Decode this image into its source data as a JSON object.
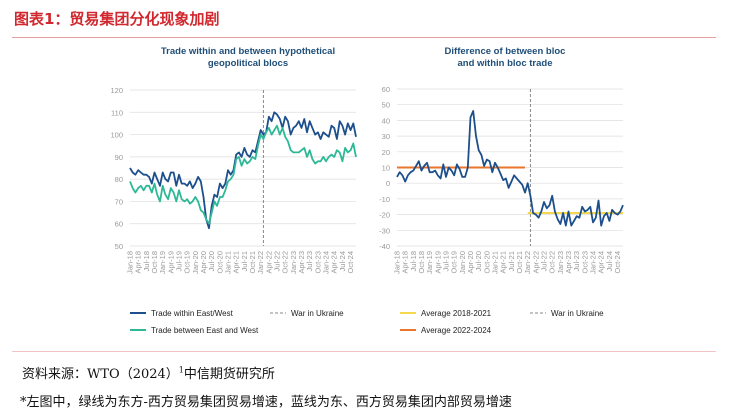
{
  "header": {
    "title": "图表1：贸易集团分化现象加剧"
  },
  "footer": {
    "source_prefix": "资料来源：WTO（2024）",
    "source_sup": "1",
    "source_suffix": "中信期货研究所",
    "note": "*左图中，绿线为东方-西方贸易集团贸易增速，蓝线为东、西方贸易集团内部贸易增速"
  },
  "colors": {
    "blue": "#1c4f8c",
    "green": "#2db896",
    "orange": "#e9762b",
    "yellow": "#f4d94e",
    "grid": "#dddddd",
    "war": "#888888"
  },
  "chart_data": [
    {
      "type": "line",
      "title": [
        "Trade within and between hypothetical",
        "geopolitical blocs"
      ],
      "ylim": [
        50,
        120
      ],
      "yticks": [
        50,
        60,
        70,
        80,
        90,
        100,
        110,
        120
      ],
      "xtick_labels": [
        "Jan-18",
        "Apr-18",
        "Jul-18",
        "Oct-18",
        "Jan-19",
        "Apr-19",
        "Jul-19",
        "Oct-19",
        "Jan-20",
        "Apr-20",
        "Jul-20",
        "Oct-20",
        "Jan-21",
        "Apr-21",
        "Jul-21",
        "Oct-21",
        "Jan-22",
        "Apr-22",
        "Jul-22",
        "Oct-22",
        "Jan-23",
        "Apr-23",
        "Jul-23",
        "Oct-23",
        "Jan-24",
        "Apr-24",
        "Jul-24",
        "Oct-24"
      ],
      "war_index": 49,
      "series": [
        {
          "name": "Trade within East/West",
          "color": "blue",
          "values": [
            85,
            83,
            82,
            84,
            83,
            82,
            82,
            81,
            78,
            83,
            80,
            77,
            83,
            80,
            79,
            83,
            83,
            77,
            82,
            78,
            78,
            77,
            79,
            76,
            78,
            81,
            79,
            72,
            62,
            58,
            68,
            73,
            72,
            78,
            76,
            78,
            84,
            82,
            84,
            91,
            92,
            90,
            94,
            91,
            90,
            93,
            92,
            97,
            102,
            100,
            101,
            108,
            106,
            110,
            109,
            107,
            103,
            108,
            106,
            100,
            103,
            104,
            106,
            103,
            107,
            101,
            106,
            103,
            100,
            101,
            98,
            101,
            100,
            99,
            104,
            103,
            98,
            106,
            104,
            100,
            105,
            102,
            105,
            99
          ]
        },
        {
          "name": "Trade between East and West",
          "color": "green",
          "values": [
            79,
            76,
            74,
            76,
            77,
            75,
            77,
            77,
            74,
            78,
            73,
            70,
            77,
            73,
            71,
            76,
            74,
            70,
            75,
            71,
            70,
            71,
            69,
            70,
            72,
            70,
            66,
            65,
            62,
            60,
            65,
            70,
            68,
            72,
            72,
            75,
            79,
            80,
            82,
            89,
            90,
            86,
            89,
            87,
            88,
            90,
            89,
            95,
            100,
            98,
            101,
            103,
            100,
            102,
            104,
            100,
            103,
            99,
            97,
            93,
            92,
            92,
            92,
            93,
            94,
            90,
            93,
            89,
            87,
            88,
            88,
            90,
            88,
            90,
            91,
            90,
            93,
            92,
            88,
            94,
            92,
            93,
            96,
            90
          ]
        }
      ],
      "legend": [
        {
          "label": "Trade within East/West",
          "kind": "line",
          "color": "blue"
        },
        {
          "label": "War in Ukraine",
          "kind": "dash",
          "color": "war"
        },
        {
          "label": "Trade between East and West",
          "kind": "line",
          "color": "green"
        }
      ]
    },
    {
      "type": "line",
      "title": [
        "Difference of between bloc",
        "and within bloc trade"
      ],
      "ylim": [
        -40,
        60
      ],
      "yticks": [
        -40,
        -30,
        -20,
        -10,
        0,
        10,
        20,
        30,
        40,
        50,
        60
      ],
      "xtick_labels": [
        "Jan-18",
        "Apr-18",
        "Jul-18",
        "Oct-18",
        "Jan-19",
        "Apr-19",
        "Jul-19",
        "Oct-19",
        "Jan-20",
        "Apr-20",
        "Jul-20",
        "Oct-20",
        "Jan-21",
        "Apr-21",
        "Jul-21",
        "Oct-21",
        "Jan-22",
        "Apr-22",
        "Jul-22",
        "Oct-22",
        "Jan-23",
        "Apr-23",
        "Jul-23",
        "Oct-23",
        "Jan-24",
        "Apr-24",
        "Jul-24",
        "Oct-24"
      ],
      "war_index": 49,
      "series": [
        {
          "name": "Difference",
          "color": "blue",
          "values": [
            4,
            7,
            5,
            1,
            5,
            7,
            8,
            11,
            14,
            8,
            11,
            13,
            7,
            7,
            8,
            5,
            3,
            12,
            4,
            10,
            8,
            5,
            12,
            9,
            4,
            4,
            10,
            42,
            46,
            30,
            21,
            18,
            11,
            15,
            14,
            7,
            13,
            10,
            6,
            2,
            3,
            -3,
            1,
            5,
            3,
            1,
            -1,
            -6,
            0,
            -8,
            -19,
            -20,
            -22,
            -18,
            -12,
            -16,
            -14,
            -8,
            -18,
            -23,
            -26,
            -19,
            -27,
            -18,
            -27,
            -24,
            -21,
            -22,
            -15,
            -18,
            -17,
            -15,
            -25,
            -22,
            -11,
            -27,
            -21,
            -19,
            -24,
            -17,
            -19,
            -20,
            -18,
            -14
          ]
        }
      ],
      "averages": [
        {
          "value": 10,
          "from": 0,
          "to": 47,
          "color": "orange"
        },
        {
          "value": -19,
          "from": 48,
          "to": 83,
          "color": "yellow"
        }
      ],
      "legend": [
        {
          "label": "Average 2018-2021",
          "kind": "line",
          "color": "yellow"
        },
        {
          "label": "War in Ukraine",
          "kind": "dash",
          "color": "war"
        },
        {
          "label": "Average 2022-2024",
          "kind": "line",
          "color": "orange"
        }
      ]
    }
  ]
}
